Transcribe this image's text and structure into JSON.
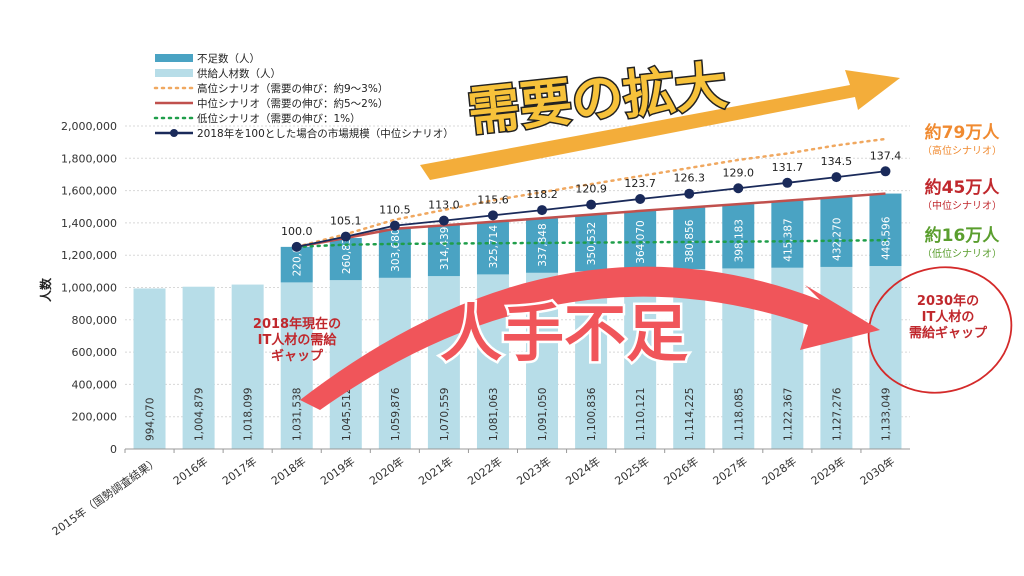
{
  "chart_data": {
    "type": "bar",
    "stacked": true,
    "ylabel": "人数",
    "ylim": [
      0,
      2000000
    ],
    "yticks": [
      0,
      200000,
      400000,
      600000,
      800000,
      1000000,
      1200000,
      1400000,
      1600000,
      1800000,
      2000000
    ],
    "ytick_labels": [
      "0",
      "200,000",
      "400,000",
      "600,000",
      "800,000",
      "1,000,000",
      "1,200,000",
      "1,400,000",
      "1,600,000",
      "1,800,000",
      "2,000,000"
    ],
    "grid": true,
    "legend_position": "top-left",
    "categories": [
      "2015年（国勢調査結果）",
      "2016年",
      "2017年",
      "2018年",
      "2019年",
      "2020年",
      "2021年",
      "2022年",
      "2023年",
      "2024年",
      "2025年",
      "2026年",
      "2027年",
      "2028年",
      "2029年",
      "2030年"
    ],
    "series": [
      {
        "name": "供給人材数（人）",
        "color": "#b7dde8",
        "values": [
          994070,
          1004879,
          1018099,
          1031538,
          1045512,
          1059876,
          1070559,
          1081063,
          1091050,
          1100836,
          1110121,
          1114225,
          1118085,
          1122367,
          1127276,
          1133049
        ],
        "labels": [
          "994,070",
          "1,004,879",
          "1,018,099",
          "1,031,538",
          "1,045,512",
          "1,059,876",
          "1,070,559",
          "1,081,063",
          "1,091,050",
          "1,100,836",
          "1,110,121",
          "1,114,225",
          "1,118,085",
          "1,122,367",
          "1,127,276",
          "1,133,049"
        ]
      },
      {
        "name": "不足数（人）",
        "color": "#4aa3c3",
        "values": [
          null,
          null,
          null,
          220000,
          260835,
          303680,
          314439,
          325714,
          337848,
          350532,
          364070,
          380856,
          398183,
          415387,
          432270,
          448596
        ],
        "labels": [
          "",
          "",
          "",
          "220,000",
          "260,835",
          "303,680",
          "314,439",
          "325,714",
          "337,848",
          "350,532",
          "364,070",
          "380,856",
          "398,183",
          "415,387",
          "432,270",
          "448,596"
        ]
      }
    ],
    "lines": [
      {
        "name": "高位シナリオ（需要の伸び：約9～3%）",
        "color": "#f0a860",
        "style": "dotted",
        "values": [
          null,
          null,
          null,
          1251538,
          1330000,
          1420000,
          1480000,
          1540000,
          1590000,
          1640000,
          1690000,
          1740000,
          1790000,
          1830000,
          1880000,
          1920000
        ]
      },
      {
        "name": "中位シナリオ（需要の伸び：約5～2%）",
        "color": "#c0504d",
        "style": "solid",
        "values": [
          null,
          null,
          null,
          1251538,
          1306347,
          1363556,
          1384998,
          1406777,
          1428898,
          1451368,
          1474191,
          1495081,
          1516268,
          1537754,
          1559546,
          1581645
        ]
      },
      {
        "name": "低位シナリオ（需要の伸び：1%）",
        "color": "#1f9e4a",
        "style": "dotted",
        "values": [
          null,
          null,
          null,
          1251538,
          1265000,
          1270000,
          1272000,
          1274000,
          1276000,
          1278000,
          1280000,
          1282000,
          1284000,
          1286000,
          1290000,
          1293000
        ]
      },
      {
        "name": "2018年を100とした場合の市場規模（中位シナリオ）",
        "color": "#1a2a5a",
        "style": "line-marker",
        "index": [
          null,
          null,
          null,
          100.0,
          105.1,
          110.5,
          113.0,
          115.6,
          118.2,
          120.9,
          123.7,
          126.3,
          129.0,
          131.7,
          134.5,
          137.4
        ],
        "index_labels": [
          "",
          "",
          "",
          "100.0",
          "105.1",
          "110.5",
          "113.0",
          "115.6",
          "118.2",
          "120.9",
          "123.7",
          "126.3",
          "129.0",
          "131.7",
          "134.5",
          "137.4"
        ]
      }
    ],
    "annotations": {
      "high": {
        "value": "約79万人",
        "sub": "（高位シナリオ）",
        "color": "#f08a30"
      },
      "mid": {
        "value": "約45万人",
        "sub": "（中位シナリオ）",
        "color": "#c0282d"
      },
      "low": {
        "value": "約16万人",
        "sub": "（低位シナリオ）",
        "color": "#5a9e2e"
      },
      "gap2018": [
        "2018年現在の",
        "IT人材の需給",
        "ギャップ"
      ],
      "gap2030": [
        "2030年の",
        "IT人材の",
        "需給ギャップ"
      ],
      "demand": "需要の拡大",
      "shortage": "人手不足"
    }
  }
}
